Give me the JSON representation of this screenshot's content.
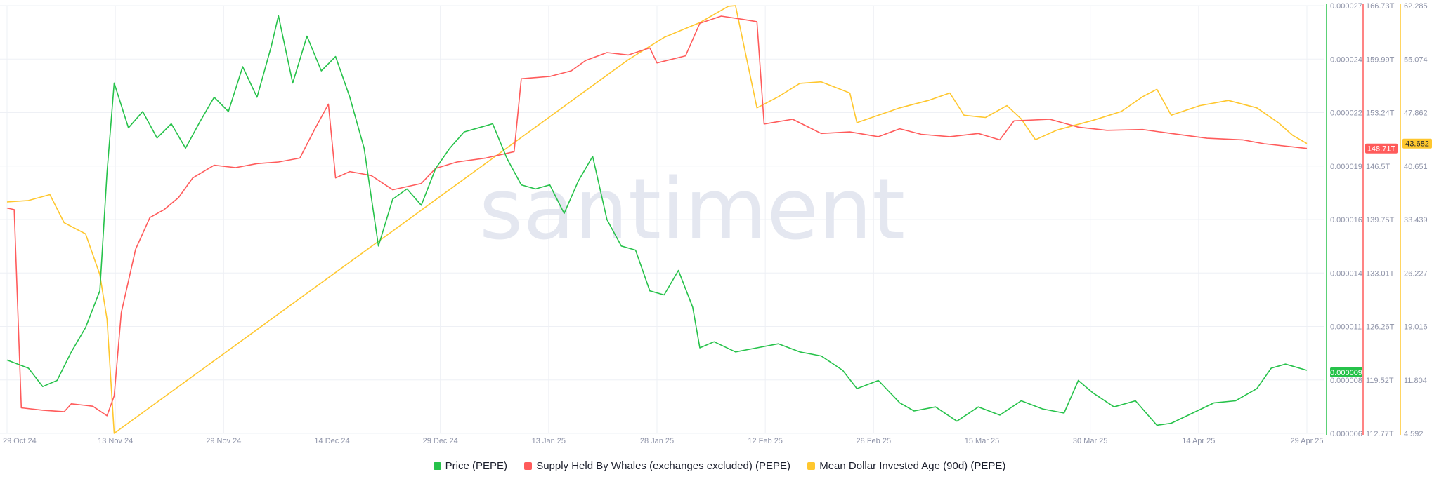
{
  "watermark": "santiment",
  "colors": {
    "price": "#26c24a",
    "whales": "#ff5b5b",
    "age": "#ffc72e",
    "grid": "#eef0f5",
    "text": "#8e93a8"
  },
  "legend": [
    {
      "label": "Price (PEPE)",
      "color": "#26c24a"
    },
    {
      "label": "Supply Held By Whales (exchanges excluded) (PEPE)",
      "color": "#ff5b5b"
    },
    {
      "label": "Mean Dollar Invested Age (90d) (PEPE)",
      "color": "#ffc72e"
    }
  ],
  "chart_data": {
    "type": "line",
    "x_ticks": [
      "29 Oct 24",
      "13 Nov 24",
      "29 Nov 24",
      "14 Dec 24",
      "29 Dec 24",
      "13 Jan 25",
      "28 Jan 25",
      "12 Feb 25",
      "28 Feb 25",
      "15 Mar 25",
      "30 Mar 25",
      "14 Apr 25",
      "29 Apr 25"
    ],
    "x_range": [
      "2024-10-29",
      "2025-04-29"
    ],
    "grid": true,
    "legend_position": "bottom",
    "axes": {
      "price": {
        "ticks": [
          "0.000027",
          "0.000024",
          "0.000022",
          "0.000019",
          "0.000016",
          "0.000014",
          "0.000011",
          "0.000008",
          "0.000006"
        ],
        "range": [
          6e-06,
          2.7e-05
        ]
      },
      "whales": {
        "ticks": [
          "166.73T",
          "159.99T",
          "153.24T",
          "146.5T",
          "139.75T",
          "133.01T",
          "126.26T",
          "119.52T",
          "112.77T"
        ],
        "range": [
          112.77,
          166.73
        ],
        "unit": "T"
      },
      "age": {
        "ticks": [
          "62.285",
          "55.074",
          "47.862",
          "40.651",
          "33.439",
          "26.227",
          "19.016",
          "11.804",
          "4.592"
        ],
        "range": [
          4.592,
          62.285
        ]
      }
    },
    "last_values": {
      "price": "0.000009",
      "whales": "148.71T",
      "age": "43.682"
    },
    "series": [
      {
        "name": "Price (PEPE)",
        "axis": "price",
        "points": [
          [
            "2024-10-29",
            9.6e-06
          ],
          [
            "2024-11-01",
            9.2e-06
          ],
          [
            "2024-11-03",
            8.3e-06
          ],
          [
            "2024-11-05",
            8.6e-06
          ],
          [
            "2024-11-07",
            1e-05
          ],
          [
            "2024-11-09",
            1.12e-05
          ],
          [
            "2024-11-11",
            1.3e-05
          ],
          [
            "2024-11-12",
            1.88e-05
          ],
          [
            "2024-11-13",
            2.32e-05
          ],
          [
            "2024-11-15",
            2.1e-05
          ],
          [
            "2024-11-17",
            2.18e-05
          ],
          [
            "2024-11-19",
            2.05e-05
          ],
          [
            "2024-11-21",
            2.12e-05
          ],
          [
            "2024-11-23",
            2e-05
          ],
          [
            "2024-11-25",
            2.13e-05
          ],
          [
            "2024-11-27",
            2.25e-05
          ],
          [
            "2024-11-29",
            2.18e-05
          ],
          [
            "2024-12-01",
            2.4e-05
          ],
          [
            "2024-12-03",
            2.25e-05
          ],
          [
            "2024-12-05",
            2.5e-05
          ],
          [
            "2024-12-06",
            2.65e-05
          ],
          [
            "2024-12-08",
            2.32e-05
          ],
          [
            "2024-12-10",
            2.55e-05
          ],
          [
            "2024-12-12",
            2.38e-05
          ],
          [
            "2024-12-14",
            2.45e-05
          ],
          [
            "2024-12-16",
            2.25e-05
          ],
          [
            "2024-12-18",
            2e-05
          ],
          [
            "2024-12-20",
            1.52e-05
          ],
          [
            "2024-12-22",
            1.75e-05
          ],
          [
            "2024-12-24",
            1.8e-05
          ],
          [
            "2024-12-26",
            1.72e-05
          ],
          [
            "2024-12-28",
            1.9e-05
          ],
          [
            "2024-12-30",
            2e-05
          ],
          [
            "2025-01-01",
            2.08e-05
          ],
          [
            "2025-01-03",
            2.1e-05
          ],
          [
            "2025-01-05",
            2.12e-05
          ],
          [
            "2025-01-07",
            1.95e-05
          ],
          [
            "2025-01-09",
            1.82e-05
          ],
          [
            "2025-01-11",
            1.8e-05
          ],
          [
            "2025-01-13",
            1.82e-05
          ],
          [
            "2025-01-15",
            1.68e-05
          ],
          [
            "2025-01-17",
            1.84e-05
          ],
          [
            "2025-01-19",
            1.96e-05
          ],
          [
            "2025-01-21",
            1.65e-05
          ],
          [
            "2025-01-23",
            1.52e-05
          ],
          [
            "2025-01-25",
            1.5e-05
          ],
          [
            "2025-01-27",
            1.3e-05
          ],
          [
            "2025-01-29",
            1.28e-05
          ],
          [
            "2025-01-31",
            1.4e-05
          ],
          [
            "2025-02-02",
            1.22e-05
          ],
          [
            "2025-02-03",
            1.02e-05
          ],
          [
            "2025-02-05",
            1.05e-05
          ],
          [
            "2025-02-08",
            1e-05
          ],
          [
            "2025-02-11",
            1.02e-05
          ],
          [
            "2025-02-14",
            1.04e-05
          ],
          [
            "2025-02-17",
            1e-05
          ],
          [
            "2025-02-20",
            9.8e-06
          ],
          [
            "2025-02-23",
            9.1e-06
          ],
          [
            "2025-02-25",
            8.2e-06
          ],
          [
            "2025-02-28",
            8.6e-06
          ],
          [
            "2025-03-03",
            7.5e-06
          ],
          [
            "2025-03-05",
            7.1e-06
          ],
          [
            "2025-03-08",
            7.3e-06
          ],
          [
            "2025-03-11",
            6.6e-06
          ],
          [
            "2025-03-14",
            7.3e-06
          ],
          [
            "2025-03-17",
            6.9e-06
          ],
          [
            "2025-03-20",
            7.6e-06
          ],
          [
            "2025-03-23",
            7.2e-06
          ],
          [
            "2025-03-26",
            7e-06
          ],
          [
            "2025-03-28",
            8.6e-06
          ],
          [
            "2025-03-30",
            8e-06
          ],
          [
            "2025-04-02",
            7.3e-06
          ],
          [
            "2025-04-05",
            7.6e-06
          ],
          [
            "2025-04-08",
            6.4e-06
          ],
          [
            "2025-04-10",
            6.5e-06
          ],
          [
            "2025-04-13",
            7e-06
          ],
          [
            "2025-04-16",
            7.5e-06
          ],
          [
            "2025-04-19",
            7.6e-06
          ],
          [
            "2025-04-22",
            8.2e-06
          ],
          [
            "2025-04-24",
            9.2e-06
          ],
          [
            "2025-04-26",
            9.4e-06
          ],
          [
            "2025-04-29",
            9.1e-06
          ]
        ]
      },
      {
        "name": "Supply Held By Whales (exchanges excluded) (PEPE)",
        "axis": "whales",
        "points": [
          [
            "2024-10-29",
            141.2
          ],
          [
            "2024-10-30",
            141.0
          ],
          [
            "2024-10-31",
            116.0
          ],
          [
            "2024-11-03",
            115.7
          ],
          [
            "2024-11-06",
            115.5
          ],
          [
            "2024-11-07",
            116.5
          ],
          [
            "2024-11-10",
            116.2
          ],
          [
            "2024-11-12",
            115.0
          ],
          [
            "2024-11-13",
            117.5
          ],
          [
            "2024-11-14",
            128.0
          ],
          [
            "2024-11-16",
            136.0
          ],
          [
            "2024-11-18",
            140.0
          ],
          [
            "2024-11-20",
            141.0
          ],
          [
            "2024-11-22",
            142.5
          ],
          [
            "2024-11-24",
            145.0
          ],
          [
            "2024-11-27",
            146.6
          ],
          [
            "2024-11-30",
            146.3
          ],
          [
            "2024-12-03",
            146.8
          ],
          [
            "2024-12-06",
            147.0
          ],
          [
            "2024-12-09",
            147.5
          ],
          [
            "2024-12-11",
            151.0
          ],
          [
            "2024-12-13",
            154.3
          ],
          [
            "2024-12-14",
            145.0
          ],
          [
            "2024-12-16",
            145.8
          ],
          [
            "2024-12-19",
            145.3
          ],
          [
            "2024-12-22",
            143.5
          ],
          [
            "2024-12-26",
            144.3
          ],
          [
            "2024-12-28",
            146.2
          ],
          [
            "2024-12-31",
            147.0
          ],
          [
            "2025-01-04",
            147.5
          ],
          [
            "2025-01-08",
            148.3
          ],
          [
            "2025-01-09",
            157.5
          ],
          [
            "2025-01-13",
            157.8
          ],
          [
            "2025-01-16",
            158.5
          ],
          [
            "2025-01-18",
            159.8
          ],
          [
            "2025-01-21",
            160.8
          ],
          [
            "2025-01-24",
            160.5
          ],
          [
            "2025-01-27",
            161.4
          ],
          [
            "2025-01-28",
            159.5
          ],
          [
            "2025-02-01",
            160.4
          ],
          [
            "2025-02-03",
            164.5
          ],
          [
            "2025-02-06",
            165.4
          ],
          [
            "2025-02-09",
            165.0
          ],
          [
            "2025-02-11",
            164.7
          ],
          [
            "2025-02-12",
            151.8
          ],
          [
            "2025-02-16",
            152.4
          ],
          [
            "2025-02-20",
            150.6
          ],
          [
            "2025-02-24",
            150.8
          ],
          [
            "2025-02-28",
            150.2
          ],
          [
            "2025-03-03",
            151.2
          ],
          [
            "2025-03-06",
            150.5
          ],
          [
            "2025-03-10",
            150.2
          ],
          [
            "2025-03-14",
            150.6
          ],
          [
            "2025-03-17",
            149.8
          ],
          [
            "2025-03-19",
            152.2
          ],
          [
            "2025-03-24",
            152.4
          ],
          [
            "2025-03-28",
            151.4
          ],
          [
            "2025-04-01",
            151.0
          ],
          [
            "2025-04-06",
            151.1
          ],
          [
            "2025-04-10",
            150.6
          ],
          [
            "2025-04-15",
            150.0
          ],
          [
            "2025-04-20",
            149.8
          ],
          [
            "2025-04-23",
            149.3
          ],
          [
            "2025-04-29",
            148.71
          ]
        ]
      },
      {
        "name": "Mean Dollar Invested Age (90d) (PEPE)",
        "axis": "age",
        "points": [
          [
            "2024-10-29",
            35.8
          ],
          [
            "2024-11-01",
            36.0
          ],
          [
            "2024-11-04",
            36.8
          ],
          [
            "2024-11-06",
            33.0
          ],
          [
            "2024-11-09",
            31.5
          ],
          [
            "2024-11-11",
            26.0
          ],
          [
            "2024-11-12",
            20.0
          ],
          [
            "2024-11-13",
            4.6
          ],
          [
            "2024-11-15",
            6.0
          ],
          [
            "2024-11-20",
            9.5
          ],
          [
            "2024-11-25",
            13.0
          ],
          [
            "2024-11-30",
            16.5
          ],
          [
            "2024-12-05",
            20.0
          ],
          [
            "2024-12-10",
            23.5
          ],
          [
            "2024-12-15",
            27.0
          ],
          [
            "2024-12-20",
            30.5
          ],
          [
            "2024-12-25",
            34.0
          ],
          [
            "2024-12-30",
            37.5
          ],
          [
            "2025-01-04",
            41.0
          ],
          [
            "2025-01-09",
            44.5
          ],
          [
            "2025-01-14",
            48.0
          ],
          [
            "2025-01-19",
            51.5
          ],
          [
            "2025-01-24",
            55.0
          ],
          [
            "2025-01-29",
            58.0
          ],
          [
            "2025-02-03",
            60.0
          ],
          [
            "2025-02-07",
            62.2
          ],
          [
            "2025-02-08",
            62.28
          ],
          [
            "2025-02-11",
            48.5
          ],
          [
            "2025-02-14",
            50.0
          ],
          [
            "2025-02-17",
            51.8
          ],
          [
            "2025-02-20",
            52.0
          ],
          [
            "2025-02-24",
            50.5
          ],
          [
            "2025-02-25",
            46.5
          ],
          [
            "2025-02-28",
            47.5
          ],
          [
            "2025-03-03",
            48.5
          ],
          [
            "2025-03-07",
            49.5
          ],
          [
            "2025-03-10",
            50.5
          ],
          [
            "2025-03-12",
            47.5
          ],
          [
            "2025-03-15",
            47.2
          ],
          [
            "2025-03-18",
            48.8
          ],
          [
            "2025-03-20",
            47.0
          ],
          [
            "2025-03-22",
            44.2
          ],
          [
            "2025-03-25",
            45.5
          ],
          [
            "2025-03-30",
            46.8
          ],
          [
            "2025-04-03",
            48.0
          ],
          [
            "2025-04-06",
            50.0
          ],
          [
            "2025-04-08",
            51.0
          ],
          [
            "2025-04-10",
            47.5
          ],
          [
            "2025-04-14",
            48.8
          ],
          [
            "2025-04-18",
            49.5
          ],
          [
            "2025-04-22",
            48.5
          ],
          [
            "2025-04-25",
            46.5
          ],
          [
            "2025-04-27",
            44.8
          ],
          [
            "2025-04-29",
            43.68
          ]
        ]
      }
    ]
  }
}
